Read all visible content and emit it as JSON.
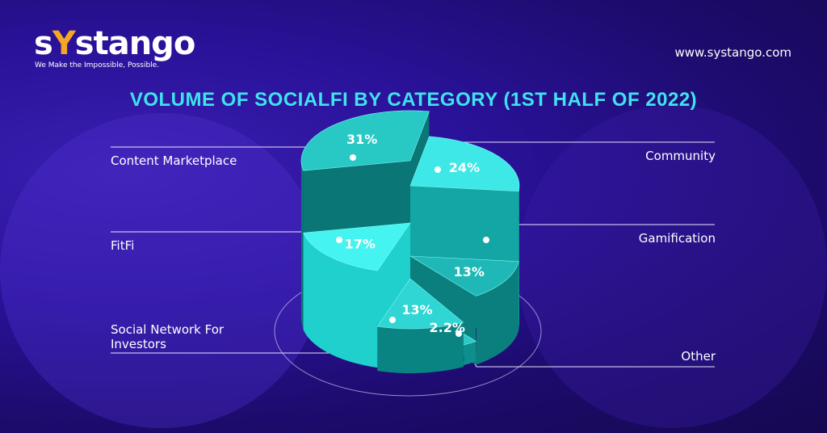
{
  "brand": {
    "logo": "sYstango",
    "tagline": "We Make the Impossible, Possible.",
    "url": "www.systango.com"
  },
  "colors": {
    "title": "#3fe3ee",
    "accent": "#f5a623",
    "top": "#2fd8d8",
    "side": "#0a8a8a"
  },
  "chart_data": {
    "type": "pie",
    "title": "VOLUME OF SOCIALFI BY CATEGORY (1ST HALF OF 2022)",
    "style": "3d exploded pie, slices with varying heights",
    "categories": [
      "Community",
      "Gamification",
      "Other",
      "Social Network For Investors",
      "FitFi",
      "Content Marketplace"
    ],
    "values": [
      24,
      13,
      2.2,
      13,
      17,
      31
    ],
    "labels": [
      "24%",
      "13%",
      "2.2%",
      "13%",
      "17%",
      "31%"
    ],
    "legend": "callout labels with leader lines"
  }
}
